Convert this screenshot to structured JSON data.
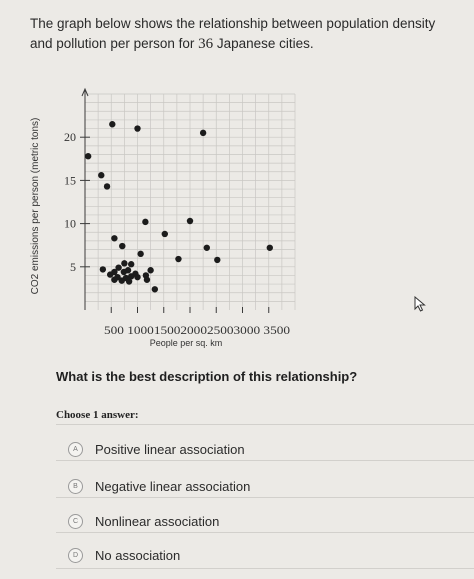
{
  "question": {
    "text_before": "The graph below shows the relationship between population density and pollution per person for ",
    "number": "36",
    "text_after": " Japanese cities."
  },
  "chart_data": {
    "type": "scatter",
    "xlabel": "People per sq. km",
    "ylabel": "CO2 emissions per person (metric tons)",
    "x_ticks": [
      500,
      1000,
      1500,
      2000,
      2500,
      3000,
      3500
    ],
    "x_tick_label": "500 10001500200025003000 3500",
    "y_ticks": [
      5,
      10,
      15,
      20
    ],
    "xlim": [
      0,
      4000
    ],
    "ylim": [
      0,
      25
    ],
    "grid": true,
    "points": [
      {
        "x": 520,
        "y": 21.5
      },
      {
        "x": 1000,
        "y": 21
      },
      {
        "x": 2250,
        "y": 20.5
      },
      {
        "x": 60,
        "y": 17.8
      },
      {
        "x": 310,
        "y": 15.6
      },
      {
        "x": 420,
        "y": 14.3
      },
      {
        "x": 1150,
        "y": 10.2
      },
      {
        "x": 1520,
        "y": 8.8
      },
      {
        "x": 560,
        "y": 8.3
      },
      {
        "x": 2000,
        "y": 10.3
      },
      {
        "x": 710,
        "y": 7.4
      },
      {
        "x": 2320,
        "y": 7.2
      },
      {
        "x": 3520,
        "y": 7.2
      },
      {
        "x": 1060,
        "y": 6.5
      },
      {
        "x": 1780,
        "y": 5.9
      },
      {
        "x": 2520,
        "y": 5.8
      },
      {
        "x": 750,
        "y": 5.4
      },
      {
        "x": 880,
        "y": 5.3
      },
      {
        "x": 340,
        "y": 4.7
      },
      {
        "x": 640,
        "y": 4.9
      },
      {
        "x": 820,
        "y": 4.6
      },
      {
        "x": 1250,
        "y": 4.6
      },
      {
        "x": 560,
        "y": 4.4
      },
      {
        "x": 740,
        "y": 4.4
      },
      {
        "x": 960,
        "y": 4.2
      },
      {
        "x": 480,
        "y": 4.1
      },
      {
        "x": 1160,
        "y": 4.0
      },
      {
        "x": 880,
        "y": 3.9
      },
      {
        "x": 620,
        "y": 3.8
      },
      {
        "x": 780,
        "y": 3.7
      },
      {
        "x": 1000,
        "y": 3.8
      },
      {
        "x": 560,
        "y": 3.5
      },
      {
        "x": 700,
        "y": 3.4
      },
      {
        "x": 840,
        "y": 3.3
      },
      {
        "x": 1180,
        "y": 3.5
      },
      {
        "x": 1330,
        "y": 2.4
      }
    ]
  },
  "prompt": "What is the best description of this relationship?",
  "choose_label": "Choose 1 answer:",
  "options": [
    {
      "letter": "A",
      "label": "Positive linear association"
    },
    {
      "letter": "B",
      "label": "Negative linear association"
    },
    {
      "letter": "C",
      "label": "Nonlinear association"
    },
    {
      "letter": "D",
      "label": "No association"
    }
  ],
  "icons": {
    "cursor": "pointer-cursor-icon"
  },
  "colors": {
    "dot": "#1c1c1c",
    "grid": "#c9c7c3",
    "axis": "#3b3b3b",
    "background": "#eceae6"
  }
}
